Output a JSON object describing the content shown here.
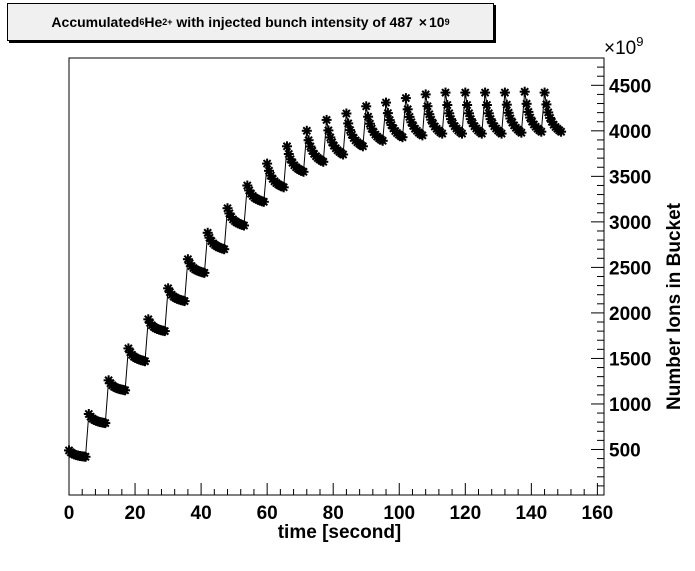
{
  "chart_data": {
    "type": "scatter",
    "title_parts": {
      "prefix": "Accumulated ",
      "isotope_mass": "6",
      "element": "He",
      "charge": "2+",
      "middle": " with injected bunch intensity of 487 ",
      "times": "×",
      "base": "10",
      "exp": "9"
    },
    "xlabel": "time [second]",
    "ylabel": "Number Ions in Bucket",
    "y_multiplier": {
      "base": "×10",
      "exp": "9"
    },
    "xlim": [
      0,
      162
    ],
    "ylim": [
      0,
      4800
    ],
    "x_ticks": [
      0,
      20,
      40,
      60,
      80,
      100,
      120,
      140,
      160
    ],
    "y_ticks": [
      500,
      1000,
      1500,
      2000,
      2500,
      3000,
      3500,
      4000,
      4500
    ],
    "grid": false,
    "marker": "asterisk",
    "series": [
      {
        "values": [
          {
            "t": 0.0,
            "peak": 490,
            "end": 420
          },
          {
            "t": 6.0,
            "peak": 890,
            "end": 790
          },
          {
            "t": 12.0,
            "peak": 1260,
            "end": 1150
          },
          {
            "t": 18.0,
            "peak": 1610,
            "end": 1470
          },
          {
            "t": 24.0,
            "peak": 1930,
            "end": 1800
          },
          {
            "t": 30.0,
            "peak": 2270,
            "end": 2130
          },
          {
            "t": 36.0,
            "peak": 2590,
            "end": 2440
          },
          {
            "t": 42.0,
            "peak": 2880,
            "end": 2700
          },
          {
            "t": 48.0,
            "peak": 3150,
            "end": 2960
          },
          {
            "t": 54.0,
            "peak": 3400,
            "end": 3220
          },
          {
            "t": 60.0,
            "peak": 3640,
            "end": 3380
          },
          {
            "t": 66.0,
            "peak": 3830,
            "end": 3550
          },
          {
            "t": 72.0,
            "peak": 4000,
            "end": 3660
          },
          {
            "t": 78.0,
            "peak": 4120,
            "end": 3740
          },
          {
            "t": 84.0,
            "peak": 4190,
            "end": 3830
          },
          {
            "t": 90.0,
            "peak": 4270,
            "end": 3890
          },
          {
            "t": 96.0,
            "peak": 4310,
            "end": 3930
          },
          {
            "t": 102.0,
            "peak": 4360,
            "end": 3950
          },
          {
            "t": 108.0,
            "peak": 4400,
            "end": 3970
          },
          {
            "t": 114.0,
            "peak": 4420,
            "end": 3970
          },
          {
            "t": 120.0,
            "peak": 4420,
            "end": 3970
          },
          {
            "t": 126.0,
            "peak": 4420,
            "end": 3970
          },
          {
            "t": 132.0,
            "peak": 4420,
            "end": 3980
          },
          {
            "t": 138.0,
            "peak": 4430,
            "end": 3990
          },
          {
            "t": 144.0,
            "peak": 4420,
            "end": 3990
          }
        ],
        "cycle_duration": 5.0,
        "cycle_gap": 1.0,
        "end_time": 149.0
      }
    ]
  }
}
